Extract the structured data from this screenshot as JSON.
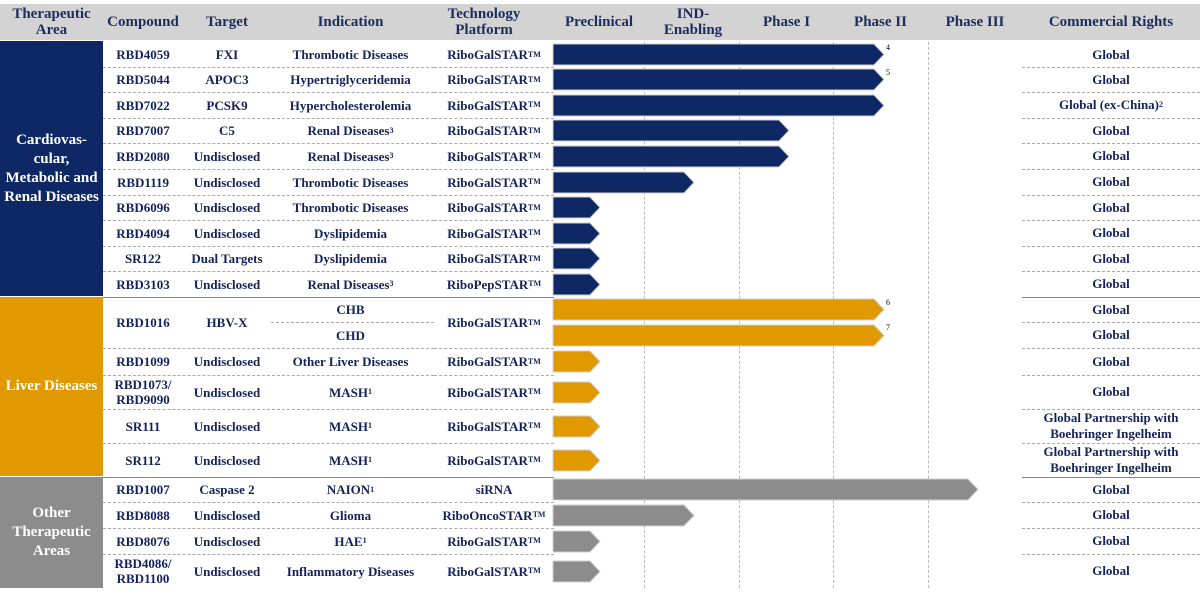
{
  "colors": {
    "cardio": "#0d2864",
    "liver": "#e09a00",
    "other": "#8c8c8c",
    "header_bg": "#d3d3d3",
    "text": "#13235a"
  },
  "header": {
    "therapeutic_area": "Therapeutic Area",
    "compound": "Compound",
    "target": "Target",
    "indication": "Indication",
    "platform": "Technology Platform",
    "preclinical": "Preclinical",
    "ind_enabling": "IND-Enabling",
    "phase1": "Phase I",
    "phase2": "Phase II",
    "phase3": "Phase III",
    "rights": "Commercial Rights"
  },
  "areas": [
    {
      "name": "Cardiovas-cular, Metabolic and Renal Diseases",
      "color": "cardio"
    },
    {
      "name": "Liver Diseases",
      "color": "liver"
    },
    {
      "name": "Other Therapeutic Areas",
      "color": "other"
    }
  ],
  "rows": [
    {
      "compound": "RBD4059",
      "target": "FXI",
      "indication": "Thrombotic Diseases",
      "ind_sup": "",
      "platform": "RiboGalSTAR",
      "platform_tm": "TM",
      "rights": "Global",
      "rights_sup": "",
      "stage": "Phase II",
      "note": "4",
      "area": 0
    },
    {
      "compound": "RBD5044",
      "target": "APOC3",
      "indication": "Hypertriglyceridemia",
      "ind_sup": "",
      "platform": "RiboGalSTAR",
      "platform_tm": "TM",
      "rights": "Global",
      "rights_sup": "",
      "stage": "Phase II",
      "note": "5",
      "area": 0
    },
    {
      "compound": "RBD7022",
      "target": "PCSK9",
      "indication": "Hypercholesterolemia",
      "ind_sup": "",
      "platform": "RiboGalSTAR",
      "platform_tm": "TM",
      "rights": "Global (ex-China)",
      "rights_sup": "2",
      "stage": "Phase II",
      "note": "",
      "area": 0
    },
    {
      "compound": "RBD7007",
      "target": "C5",
      "indication": "Renal Diseases",
      "ind_sup": "3",
      "platform": "RiboGalSTAR",
      "platform_tm": "TM",
      "rights": "Global",
      "rights_sup": "",
      "stage": "Phase I",
      "note": "",
      "area": 0
    },
    {
      "compound": "RBD2080",
      "target": "Undisclosed",
      "indication": "Renal Diseases",
      "ind_sup": "3",
      "platform": "RiboGalSTAR",
      "platform_tm": "TM",
      "rights": "Global",
      "rights_sup": "",
      "stage": "Phase I",
      "note": "",
      "area": 0
    },
    {
      "compound": "RBD1119",
      "target": "Undisclosed",
      "indication": "Thrombotic Diseases",
      "ind_sup": "",
      "platform": "RiboGalSTAR",
      "platform_tm": "TM",
      "rights": "Global",
      "rights_sup": "",
      "stage": "IND-Enabling",
      "note": "",
      "area": 0
    },
    {
      "compound": "RBD6096",
      "target": "Undisclosed",
      "indication": "Thrombotic Diseases",
      "ind_sup": "",
      "platform": "RiboGalSTAR",
      "platform_tm": "TM",
      "rights": "Global",
      "rights_sup": "",
      "stage": "Preclinical",
      "note": "",
      "area": 0
    },
    {
      "compound": "RBD4094",
      "target": "Undisclosed",
      "indication": "Dyslipidemia",
      "ind_sup": "",
      "platform": "RiboGalSTAR",
      "platform_tm": "TM",
      "rights": "Global",
      "rights_sup": "",
      "stage": "Preclinical",
      "note": "",
      "area": 0
    },
    {
      "compound": "SR122",
      "target": "Dual Targets",
      "indication": "Dyslipidemia",
      "ind_sup": "",
      "platform": "RiboGalSTAR",
      "platform_tm": "TM",
      "rights": "Global",
      "rights_sup": "",
      "stage": "Preclinical",
      "note": "",
      "area": 0
    },
    {
      "compound": "RBD3103",
      "target": "Undisclosed",
      "indication": "Renal Diseases",
      "ind_sup": "3",
      "platform": "RiboPepSTAR",
      "platform_tm": "TM",
      "rights": "Global",
      "rights_sup": "",
      "stage": "Preclinical",
      "note": "",
      "area": 0
    },
    {
      "compound": "RBD1016",
      "target": "HBV-X",
      "indication": "CHB",
      "ind_sup": "",
      "platform": "RiboGalSTAR",
      "platform_tm": "TM",
      "rights": "Global",
      "rights_sup": "",
      "stage": "Phase II",
      "note": "6",
      "area": 1
    },
    {
      "compound": "",
      "target": "",
      "indication": "CHD",
      "ind_sup": "",
      "platform": "",
      "platform_tm": "",
      "rights": "Global",
      "rights_sup": "",
      "stage": "Phase II",
      "note": "7",
      "area": 1
    },
    {
      "compound": "RBD1099",
      "target": "Undisclosed",
      "indication": "Other Liver Diseases",
      "ind_sup": "",
      "platform": "RiboGalSTAR",
      "platform_tm": "TM",
      "rights": "Global",
      "rights_sup": "",
      "stage": "Preclinical",
      "note": "",
      "area": 1
    },
    {
      "compound": "RBD1073/ RBD9090",
      "target": "Undisclosed",
      "indication": "MASH",
      "ind_sup": "1",
      "platform": "RiboGalSTAR",
      "platform_tm": "TM",
      "rights": "Global",
      "rights_sup": "",
      "stage": "Preclinical",
      "note": "",
      "area": 1
    },
    {
      "compound": "SR111",
      "target": "Undisclosed",
      "indication": "MASH",
      "ind_sup": "1",
      "platform": "RiboGalSTAR",
      "platform_tm": "TM",
      "rights": "Global Partnership with Boehringer Ingelheim",
      "rights_sup": "",
      "stage": "Preclinical",
      "note": "",
      "area": 1
    },
    {
      "compound": "SR112",
      "target": "Undisclosed",
      "indication": "MASH",
      "ind_sup": "1",
      "platform": "RiboGalSTAR",
      "platform_tm": "TM",
      "rights": "Global Partnership with Boehringer Ingelheim",
      "rights_sup": "",
      "stage": "Preclinical",
      "note": "",
      "area": 1
    },
    {
      "compound": "RBD1007",
      "target": "Caspase 2",
      "indication": "NAION",
      "ind_sup": "1",
      "platform": "siRNA",
      "platform_tm": "",
      "rights": "Global",
      "rights_sup": "",
      "stage": "Phase III",
      "note": "",
      "area": 2
    },
    {
      "compound": "RBD8088",
      "target": "Undisclosed",
      "indication": "Glioma",
      "ind_sup": "",
      "platform": "RiboOncoSTAR",
      "platform_tm": "TM",
      "rights": "Global",
      "rights_sup": "",
      "stage": "IND-Enabling",
      "note": "",
      "area": 2
    },
    {
      "compound": "RBD8076",
      "target": "Undisclosed",
      "indication": "HAE",
      "ind_sup": "1",
      "platform": "RiboGalSTAR",
      "platform_tm": "TM",
      "rights": "Global",
      "rights_sup": "",
      "stage": "Preclinical",
      "note": "",
      "area": 2
    },
    {
      "compound": "RBD4086/ RBD1100",
      "target": "Undisclosed",
      "indication": "Inflammatory Diseases",
      "ind_sup": "",
      "platform": "RiboGalSTAR",
      "platform_tm": "TM",
      "rights": "Global",
      "rights_sup": "",
      "stage": "Preclinical",
      "note": "",
      "area": 2
    }
  ]
}
